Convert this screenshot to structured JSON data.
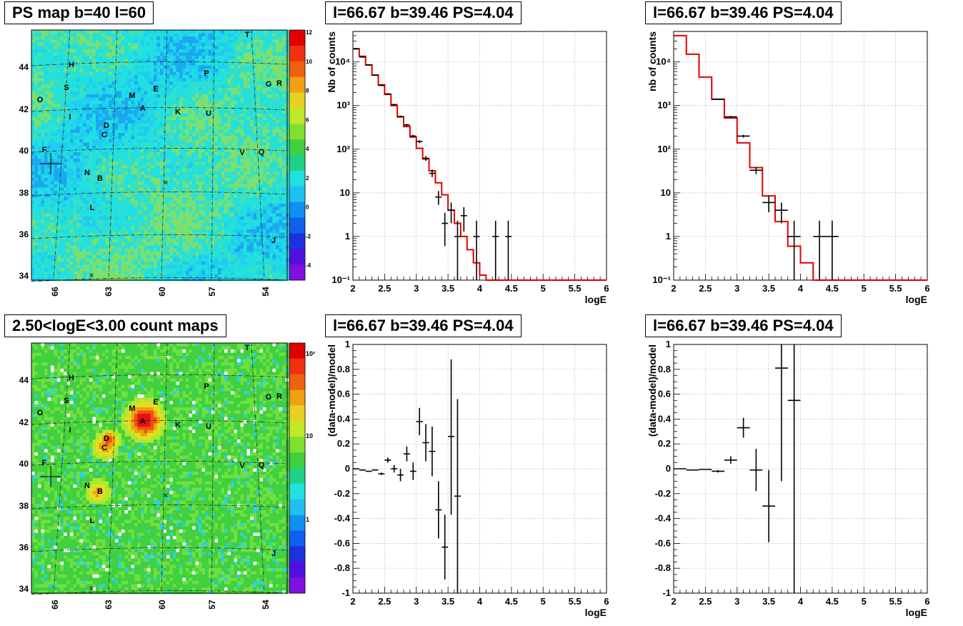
{
  "titles": {
    "map_top": "PS map b=40 l=60",
    "map_bottom": "2.50<logE<3.00 count maps",
    "panel2": "l=66.67 b=39.46 PS=4.04",
    "panel3": "l=66.67 b=39.46 PS=4.04",
    "panel5": "l=66.67 b=39.46 PS=4.04",
    "panel6": "l=66.67 b=39.46 PS=4.04"
  },
  "sky_map": {
    "lon_ticks": [
      "66",
      "63",
      "60",
      "57",
      "54"
    ],
    "lat_ticks": [
      "44",
      "42",
      "40",
      "38",
      "36",
      "34"
    ],
    "sources": [
      "T",
      "H",
      "P",
      "S",
      "G",
      "R",
      "O",
      "M",
      "E",
      "A",
      "K",
      "U",
      "I",
      "D",
      "C",
      "F",
      "V",
      "Q",
      "N",
      "B",
      "L",
      "J"
    ]
  },
  "colors": {
    "model_line": "#e00000",
    "data_marker": "#000000",
    "grid": "#999999"
  },
  "colorbars": {
    "top_ticks": [
      "12",
      "10",
      "8",
      "6",
      "4",
      "2",
      "0",
      "-2",
      "-4"
    ],
    "bottom_ticks": [
      "10²",
      "10",
      "1"
    ]
  },
  "chart_data": [
    {
      "id": "spectrum-left",
      "type": "line",
      "title": "l=66.67 b=39.46 PS=4.04",
      "xlabel": "logE",
      "ylabel": "Nb of counts",
      "xlim": [
        2,
        6
      ],
      "ylim": [
        0.1,
        50000
      ],
      "yscale": "log",
      "grid": true,
      "x_ticks": [
        "2",
        "2.5",
        "3",
        "3.5",
        "4",
        "4.5",
        "5",
        "5.5",
        "6"
      ],
      "y_ticks": [
        "10⁻¹",
        "1",
        "10",
        "10²",
        "10³",
        "10⁴"
      ],
      "model_step": {
        "edges": [
          2.0,
          2.1,
          2.2,
          2.3,
          2.4,
          2.5,
          2.6,
          2.7,
          2.8,
          2.9,
          3.0,
          3.1,
          3.2,
          3.3,
          3.4,
          3.5,
          3.6,
          3.7,
          3.8,
          3.9,
          4.0,
          4.1,
          6.0
        ],
        "values": [
          20000,
          13500,
          8500,
          5000,
          3000,
          1800,
          1000,
          550,
          330,
          190,
          105,
          60,
          32,
          17,
          9,
          4,
          2,
          1,
          0.5,
          0.25,
          0.13,
          0.1
        ]
      },
      "points": [
        {
          "x": 2.05,
          "y": 20000,
          "xerr": 0.05,
          "ylo": 19000,
          "yhi": 21000
        },
        {
          "x": 2.15,
          "y": 13000,
          "xerr": 0.05,
          "ylo": 12500,
          "yhi": 13500
        },
        {
          "x": 2.25,
          "y": 8600,
          "xerr": 0.05,
          "ylo": 8400,
          "yhi": 8900
        },
        {
          "x": 2.35,
          "y": 5000,
          "xerr": 0.05,
          "ylo": 4900,
          "yhi": 5100
        },
        {
          "x": 2.45,
          "y": 2900,
          "xerr": 0.05,
          "ylo": 2800,
          "yhi": 3000
        },
        {
          "x": 2.55,
          "y": 1850,
          "xerr": 0.05,
          "ylo": 1800,
          "yhi": 1900
        },
        {
          "x": 2.65,
          "y": 1050,
          "xerr": 0.05,
          "ylo": 1000,
          "yhi": 1100
        },
        {
          "x": 2.75,
          "y": 560,
          "xerr": 0.05,
          "ylo": 530,
          "yhi": 590
        },
        {
          "x": 2.85,
          "y": 360,
          "xerr": 0.05,
          "ylo": 340,
          "yhi": 380
        },
        {
          "x": 2.95,
          "y": 200,
          "xerr": 0.05,
          "ylo": 185,
          "yhi": 215
        },
        {
          "x": 3.05,
          "y": 150,
          "xerr": 0.05,
          "ylo": 138,
          "yhi": 162
        },
        {
          "x": 3.15,
          "y": 62,
          "xerr": 0.05,
          "ylo": 54,
          "yhi": 70
        },
        {
          "x": 3.25,
          "y": 28,
          "xerr": 0.05,
          "ylo": 23,
          "yhi": 34
        },
        {
          "x": 3.35,
          "y": 8,
          "xerr": 0.05,
          "ylo": 5.3,
          "yhi": 11
        },
        {
          "x": 3.45,
          "y": 2,
          "xerr": 0.05,
          "ylo": 0.6,
          "yhi": 3.5
        },
        {
          "x": 3.55,
          "y": 4,
          "xerr": 0.05,
          "ylo": 2,
          "yhi": 6
        },
        {
          "x": 3.65,
          "y": 1,
          "xerr": 0.05,
          "ylo": 0.1,
          "yhi": 2.3
        },
        {
          "x": 3.75,
          "y": 3,
          "xerr": 0.05,
          "ylo": 1.3,
          "yhi": 4.7
        },
        {
          "x": 3.95,
          "y": 1,
          "xerr": 0.05,
          "ylo": 0.1,
          "yhi": 2.3
        },
        {
          "x": 4.25,
          "y": 1,
          "xerr": 0.05,
          "ylo": 0.1,
          "yhi": 2.3
        },
        {
          "x": 4.45,
          "y": 1,
          "xerr": 0.05,
          "ylo": 0.1,
          "yhi": 2.3
        }
      ]
    },
    {
      "id": "spectrum-right",
      "type": "line",
      "title": "l=66.67 b=39.46 PS=4.04",
      "xlabel": "logE",
      "ylabel": "nb of counts",
      "xlim": [
        2,
        6
      ],
      "ylim": [
        0.1,
        50000
      ],
      "yscale": "log",
      "grid": true,
      "x_ticks": [
        "2",
        "2.5",
        "3",
        "3.5",
        "4",
        "4.5",
        "5",
        "5.5",
        "6"
      ],
      "y_ticks": [
        "10⁻¹",
        "1",
        "10",
        "10²",
        "10³",
        "10⁴"
      ],
      "model_step": {
        "edges": [
          2.0,
          2.2,
          2.4,
          2.6,
          2.8,
          3.0,
          3.2,
          3.4,
          3.6,
          3.8,
          4.0,
          4.2,
          6.0
        ],
        "values": [
          40000,
          15000,
          4500,
          1400,
          520,
          140,
          38,
          8.5,
          2.2,
          0.6,
          0.25,
          0.1
        ]
      },
      "points": [
        {
          "x": 2.7,
          "y": 1400,
          "xerr": 0.1,
          "ylo": 1350,
          "yhi": 1450
        },
        {
          "x": 2.9,
          "y": 550,
          "xerr": 0.1,
          "ylo": 520,
          "yhi": 580
        },
        {
          "x": 3.1,
          "y": 200,
          "xerr": 0.1,
          "ylo": 185,
          "yhi": 215
        },
        {
          "x": 3.3,
          "y": 33,
          "xerr": 0.1,
          "ylo": 27,
          "yhi": 39
        },
        {
          "x": 3.5,
          "y": 6,
          "xerr": 0.1,
          "ylo": 3.6,
          "yhi": 8.4
        },
        {
          "x": 3.7,
          "y": 4,
          "xerr": 0.1,
          "ylo": 2,
          "yhi": 6
        },
        {
          "x": 3.9,
          "y": 1,
          "xerr": 0.1,
          "ylo": 0.1,
          "yhi": 2.3
        },
        {
          "x": 4.3,
          "y": 1,
          "xerr": 0.1,
          "ylo": 0.1,
          "yhi": 2.3
        },
        {
          "x": 4.5,
          "y": 1,
          "xerr": 0.1,
          "ylo": 0.1,
          "yhi": 2.3
        }
      ]
    },
    {
      "id": "residual-left",
      "type": "scatter",
      "title": "l=66.67 b=39.46 PS=4.04",
      "xlabel": "logE",
      "ylabel": "(data-model)/model",
      "xlim": [
        2,
        6
      ],
      "ylim": [
        -1,
        1
      ],
      "grid": true,
      "x_ticks": [
        "2",
        "2.5",
        "3",
        "3.5",
        "4",
        "4.5",
        "5",
        "5.5",
        "6"
      ],
      "y_ticks": [
        "-1",
        "-0.8",
        "-0.6",
        "-0.4",
        "-0.2",
        "0",
        "0.2",
        "0.4",
        "0.6",
        "0.8",
        "1"
      ],
      "points": [
        {
          "x": 2.05,
          "y": 0.0,
          "xerr": 0.05,
          "ylo": 0.0,
          "yhi": 0.0
        },
        {
          "x": 2.15,
          "y": -0.01,
          "xerr": 0.05,
          "ylo": -0.01,
          "yhi": -0.01
        },
        {
          "x": 2.25,
          "y": -0.02,
          "xerr": 0.05,
          "ylo": -0.02,
          "yhi": -0.02
        },
        {
          "x": 2.35,
          "y": -0.01,
          "xerr": 0.05,
          "ylo": -0.01,
          "yhi": -0.01
        },
        {
          "x": 2.45,
          "y": -0.04,
          "xerr": 0.05,
          "ylo": -0.05,
          "yhi": -0.03
        },
        {
          "x": 2.55,
          "y": 0.07,
          "xerr": 0.05,
          "ylo": 0.05,
          "yhi": 0.09
        },
        {
          "x": 2.65,
          "y": 0.0,
          "xerr": 0.05,
          "ylo": -0.03,
          "yhi": 0.03
        },
        {
          "x": 2.75,
          "y": -0.05,
          "xerr": 0.05,
          "ylo": -0.1,
          "yhi": 0.0
        },
        {
          "x": 2.85,
          "y": 0.12,
          "xerr": 0.05,
          "ylo": 0.06,
          "yhi": 0.18
        },
        {
          "x": 2.95,
          "y": -0.02,
          "xerr": 0.05,
          "ylo": -0.09,
          "yhi": 0.05
        },
        {
          "x": 3.05,
          "y": 0.38,
          "xerr": 0.05,
          "ylo": 0.27,
          "yhi": 0.49
        },
        {
          "x": 3.15,
          "y": 0.21,
          "xerr": 0.05,
          "ylo": 0.06,
          "yhi": 0.36
        },
        {
          "x": 3.25,
          "y": 0.14,
          "xerr": 0.05,
          "ylo": -0.06,
          "yhi": 0.34
        },
        {
          "x": 3.35,
          "y": -0.33,
          "xerr": 0.05,
          "ylo": -0.56,
          "yhi": -0.1
        },
        {
          "x": 3.45,
          "y": -0.63,
          "xerr": 0.05,
          "ylo": -0.89,
          "yhi": -0.37
        },
        {
          "x": 3.55,
          "y": 0.26,
          "xerr": 0.05,
          "ylo": -0.37,
          "yhi": 0.88
        },
        {
          "x": 3.65,
          "y": -0.22,
          "xerr": 0.05,
          "ylo": -1.0,
          "yhi": 0.56
        }
      ]
    },
    {
      "id": "residual-right",
      "type": "scatter",
      "title": "l=66.67 b=39.46 PS=4.04",
      "xlabel": "logE",
      "ylabel": "(data-model)/model",
      "xlim": [
        2,
        6
      ],
      "ylim": [
        -1,
        1
      ],
      "grid": true,
      "x_ticks": [
        "2",
        "2.5",
        "3",
        "3.5",
        "4",
        "4.5",
        "5",
        "5.5",
        "6"
      ],
      "y_ticks": [
        "-1",
        "-0.8",
        "-0.6",
        "-0.4",
        "-0.2",
        "0",
        "0.2",
        "0.4",
        "0.6",
        "0.8",
        "1"
      ],
      "points": [
        {
          "x": 2.1,
          "y": 0.0,
          "xerr": 0.1,
          "ylo": 0.0,
          "yhi": 0.0
        },
        {
          "x": 2.3,
          "y": -0.01,
          "xerr": 0.1,
          "ylo": -0.01,
          "yhi": -0.01
        },
        {
          "x": 2.5,
          "y": -0.005,
          "xerr": 0.1,
          "ylo": -0.005,
          "yhi": -0.005
        },
        {
          "x": 2.7,
          "y": -0.02,
          "xerr": 0.1,
          "ylo": -0.03,
          "yhi": -0.01
        },
        {
          "x": 2.9,
          "y": 0.07,
          "xerr": 0.1,
          "ylo": 0.04,
          "yhi": 0.1
        },
        {
          "x": 3.1,
          "y": 0.33,
          "xerr": 0.1,
          "ylo": 0.25,
          "yhi": 0.41
        },
        {
          "x": 3.3,
          "y": -0.01,
          "xerr": 0.1,
          "ylo": -0.18,
          "yhi": 0.16
        },
        {
          "x": 3.5,
          "y": -0.3,
          "xerr": 0.1,
          "ylo": -0.59,
          "yhi": -0.01
        },
        {
          "x": 3.7,
          "y": 0.81,
          "xerr": 0.1,
          "ylo": -0.1,
          "yhi": 1.0
        },
        {
          "x": 3.9,
          "y": 0.55,
          "xerr": 0.1,
          "ylo": -1.0,
          "yhi": 1.0
        }
      ]
    }
  ]
}
